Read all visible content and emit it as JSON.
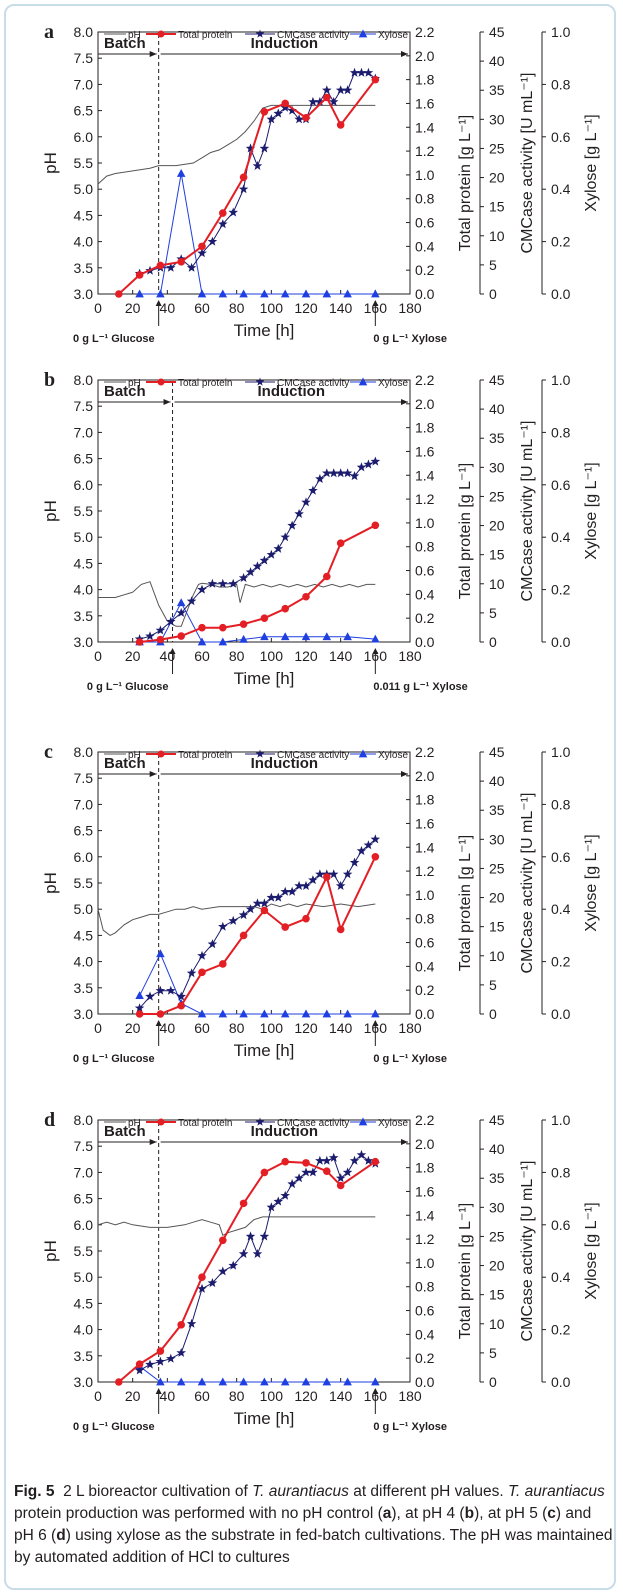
{
  "colors": {
    "ph": "#555555",
    "protein": "#e31e24",
    "cmcase": "#1c1c6e",
    "xylose": "#1f3fe0",
    "frame": "#c9dcea"
  },
  "legend": {
    "ph": "pH",
    "protein": "Total protein",
    "cmcase": "CMCase activity",
    "xylose": "Xylose"
  },
  "axes": {
    "x_label": "Time [h]",
    "y_left_label": "pH",
    "y_protein_label": "Total protein [g L⁻¹]",
    "y_cmcase_label": "CMCase activity [U mL⁻¹]",
    "y_xylose_label": "Xylose [g L⁻¹]",
    "x_ticks": [
      "0",
      "20",
      "40",
      "60",
      "80",
      "100",
      "120",
      "140",
      "160",
      "180"
    ],
    "ph_ticks": [
      "3.0",
      "3.5",
      "4.0",
      "4.5",
      "5.0",
      "5.5",
      "6.0",
      "6.5",
      "7.0",
      "7.5",
      "8.0"
    ],
    "protein_ticks": [
      "0.0",
      "0.2",
      "0.4",
      "0.6",
      "0.8",
      "1.0",
      "1.2",
      "1.4",
      "1.6",
      "1.8",
      "2.0",
      "2.2"
    ],
    "cmcase_ticks": [
      "0",
      "5",
      "10",
      "15",
      "20",
      "25",
      "30",
      "35",
      "40",
      "45"
    ],
    "xylose_ticks": [
      "0.0",
      "0.2",
      "0.4",
      "0.6",
      "0.8",
      "1.0"
    ]
  },
  "phase_labels": {
    "batch": "Batch",
    "induction": "Induction"
  },
  "caption": {
    "fig": "Fig. 5",
    "text1": "2 L bioreactor cultivation of ",
    "org1": "T. aurantiacus",
    "text2": " at different pH values. ",
    "org2": "T. aurantiacus",
    "text3": " protein production was performed with no pH control (",
    "a": "a",
    "text4": "), at pH 4 (",
    "b": "b",
    "text5": "), at pH 5 (",
    "c": "c",
    "text6": ") and pH 6 (",
    "d": "d",
    "text7": ") using xylose as the substrate in fed-batch cultivations. The pH was maintained by automated addition of HCl to cultures"
  },
  "chart_data": [
    {
      "type": "line",
      "panel": "a",
      "batch_end_h": 35,
      "glucose_note": "0 g L⁻¹ Glucose",
      "xylose_note": "0 g L⁻¹ Xylose",
      "xlim": [
        0,
        180
      ],
      "ph_lim": [
        3.0,
        8.0
      ],
      "protein_lim": [
        0,
        2.2
      ],
      "cmcase_lim": [
        0,
        45
      ],
      "xylose_lim": [
        0,
        1.0
      ],
      "ph": {
        "x": [
          0,
          5,
          10,
          20,
          30,
          35,
          45,
          55,
          60,
          65,
          70,
          75,
          80,
          85,
          90,
          95,
          100,
          105,
          110,
          120,
          130,
          140,
          150,
          160
        ],
        "y": [
          5.1,
          5.25,
          5.3,
          5.35,
          5.4,
          5.45,
          5.45,
          5.5,
          5.6,
          5.7,
          5.75,
          5.85,
          5.95,
          6.1,
          6.3,
          6.55,
          6.6,
          6.6,
          6.6,
          6.6,
          6.6,
          6.6,
          6.6,
          6.6
        ]
      },
      "protein": {
        "x": [
          12,
          24,
          36,
          48,
          60,
          72,
          84,
          96,
          108,
          120,
          132,
          140,
          160
        ],
        "y": [
          0.0,
          0.16,
          0.24,
          0.27,
          0.4,
          0.68,
          0.98,
          1.53,
          1.6,
          1.48,
          1.65,
          1.42,
          1.8
        ]
      },
      "cmcase": {
        "x": [
          24,
          30,
          36,
          42,
          48,
          54,
          60,
          66,
          72,
          78,
          84,
          88,
          92,
          96,
          100,
          104,
          108,
          112,
          116,
          120,
          124,
          128,
          132,
          136,
          140,
          144,
          148,
          152,
          156,
          160
        ],
        "y": [
          3.5,
          4.0,
          4.5,
          4.5,
          6.0,
          4.5,
          7.0,
          9.0,
          12.0,
          14.0,
          18.0,
          25.0,
          22.0,
          25.0,
          30.0,
          31.0,
          32.0,
          31.5,
          30.0,
          30.0,
          33.0,
          33.0,
          35.0,
          33.0,
          35.0,
          35.0,
          38.0,
          38.0,
          38.0,
          37.0
        ]
      },
      "xylose": {
        "x": [
          24,
          36,
          48,
          60,
          72,
          84,
          96,
          108,
          120,
          132,
          144,
          160
        ],
        "y": [
          0.0,
          0.0,
          0.46,
          0.0,
          0.0,
          0.0,
          0.0,
          0.0,
          0.0,
          0.0,
          0.0,
          0.0
        ]
      }
    },
    {
      "type": "line",
      "panel": "b",
      "batch_end_h": 43,
      "glucose_note": "0 g L⁻¹ Glucose",
      "xylose_note": "0.011 g L⁻¹ Xylose",
      "xlim": [
        0,
        180
      ],
      "ph_lim": [
        3.0,
        8.0
      ],
      "protein_lim": [
        0,
        2.2
      ],
      "cmcase_lim": [
        0,
        45
      ],
      "xylose_lim": [
        0,
        1.0
      ],
      "ph": {
        "x": [
          0,
          10,
          20,
          25,
          30,
          35,
          40,
          45,
          48,
          55,
          58,
          60,
          65,
          70,
          75,
          80,
          82,
          85,
          90,
          95,
          100,
          105,
          110,
          115,
          120,
          125,
          130,
          135,
          140,
          145,
          150,
          155,
          160
        ],
        "y": [
          3.85,
          3.85,
          3.95,
          4.1,
          4.15,
          3.7,
          3.4,
          3.3,
          3.3,
          3.9,
          4.1,
          4.12,
          4.1,
          4.05,
          4.05,
          4.1,
          3.75,
          4.1,
          4.05,
          4.1,
          4.05,
          4.1,
          4.05,
          4.1,
          4.05,
          4.1,
          4.05,
          4.1,
          4.05,
          4.1,
          4.05,
          4.1,
          4.1
        ]
      },
      "protein": {
        "x": [
          24,
          36,
          48,
          60,
          72,
          84,
          96,
          108,
          120,
          132,
          140,
          160
        ],
        "y": [
          0.0,
          0.02,
          0.05,
          0.12,
          0.12,
          0.15,
          0.2,
          0.28,
          0.38,
          0.55,
          0.83,
          0.98
        ]
      },
      "cmcase": {
        "x": [
          24,
          30,
          36,
          42,
          48,
          54,
          60,
          66,
          72,
          78,
          84,
          88,
          92,
          96,
          100,
          104,
          108,
          112,
          116,
          120,
          124,
          128,
          132,
          136,
          140,
          144,
          148,
          152,
          156,
          160
        ],
        "y": [
          0.5,
          1.0,
          2.0,
          3.5,
          5.0,
          7.0,
          9.0,
          10.0,
          10.0,
          10.0,
          11.0,
          12.0,
          13.0,
          14.0,
          15.0,
          16.0,
          18.0,
          20.0,
          22.0,
          24.0,
          26.0,
          28.0,
          29.0,
          29.0,
          29.0,
          29.0,
          28.5,
          30.0,
          30.5,
          31.0
        ]
      },
      "xylose": {
        "x": [
          24,
          36,
          48,
          60,
          72,
          84,
          96,
          108,
          120,
          132,
          144,
          160
        ],
        "y": [
          0.0,
          0.0,
          0.15,
          0.0,
          0.0,
          0.01,
          0.02,
          0.02,
          0.02,
          0.02,
          0.02,
          0.011
        ]
      }
    },
    {
      "type": "line",
      "panel": "c",
      "batch_end_h": 35,
      "glucose_note": "0 g L⁻¹ Glucose",
      "xylose_note": "0 g L⁻¹ Xylose",
      "xlim": [
        0,
        180
      ],
      "ph_lim": [
        3.0,
        8.0
      ],
      "protein_lim": [
        0,
        2.2
      ],
      "cmcase_lim": [
        0,
        45
      ],
      "xylose_lim": [
        0,
        1.0
      ],
      "ph": {
        "x": [
          0,
          3,
          7,
          10,
          15,
          20,
          25,
          30,
          35,
          40,
          45,
          50,
          55,
          60,
          70,
          80,
          90,
          95,
          100,
          105,
          110,
          115,
          120,
          130,
          140,
          150,
          160
        ],
        "y": [
          5.0,
          4.6,
          4.5,
          4.55,
          4.7,
          4.8,
          4.85,
          4.9,
          4.9,
          4.95,
          5.0,
          5.0,
          5.05,
          5.0,
          5.05,
          5.05,
          5.05,
          5.0,
          5.1,
          5.05,
          5.1,
          5.05,
          5.1,
          5.05,
          5.1,
          5.05,
          5.1
        ]
      },
      "protein": {
        "x": [
          24,
          36,
          48,
          60,
          72,
          84,
          96,
          108,
          120,
          132,
          140,
          160
        ],
        "y": [
          0.0,
          0.0,
          0.07,
          0.35,
          0.42,
          0.66,
          0.87,
          0.73,
          0.8,
          1.15,
          0.71,
          1.32
        ]
      },
      "cmcase": {
        "x": [
          24,
          30,
          36,
          42,
          48,
          54,
          60,
          66,
          72,
          78,
          84,
          88,
          92,
          96,
          100,
          104,
          108,
          112,
          116,
          120,
          124,
          128,
          132,
          136,
          140,
          144,
          148,
          152,
          156,
          160
        ],
        "y": [
          1.0,
          3.0,
          4.0,
          4.0,
          3.0,
          7.0,
          10.0,
          12.0,
          15.0,
          16.0,
          17.0,
          18.0,
          19.0,
          19.0,
          20.0,
          20.0,
          21.0,
          21.0,
          22.0,
          22.0,
          23.0,
          24.0,
          24.0,
          24.0,
          22.0,
          24.0,
          26.0,
          28.0,
          29.0,
          30.0
        ]
      },
      "xylose": {
        "x": [
          24,
          36,
          48,
          60,
          72,
          84,
          96,
          108,
          120,
          132,
          144,
          160
        ],
        "y": [
          0.07,
          0.23,
          0.04,
          0.0,
          0.0,
          0.0,
          0.0,
          0.0,
          0.0,
          0.0,
          0.0,
          0.0
        ]
      }
    },
    {
      "type": "line",
      "panel": "d",
      "batch_end_h": 35,
      "glucose_note": "0 g L⁻¹ Glucose",
      "xylose_note": "0 g L⁻¹ Xylose",
      "xlim": [
        0,
        180
      ],
      "ph_lim": [
        3.0,
        8.0
      ],
      "protein_lim": [
        0,
        2.2
      ],
      "cmcase_lim": [
        0,
        45
      ],
      "xylose_lim": [
        0,
        1.0
      ],
      "ph": {
        "x": [
          0,
          5,
          10,
          15,
          20,
          30,
          40,
          50,
          55,
          60,
          65,
          70,
          72,
          75,
          80,
          85,
          90,
          95,
          100,
          110,
          120,
          130,
          140,
          150,
          160
        ],
        "y": [
          6.0,
          6.05,
          6.0,
          6.05,
          6.0,
          5.95,
          5.95,
          6.0,
          6.05,
          6.1,
          6.05,
          6.0,
          5.8,
          5.85,
          5.9,
          5.95,
          6.1,
          6.15,
          6.15,
          6.15,
          6.15,
          6.15,
          6.15,
          6.15,
          6.15
        ]
      },
      "protein": {
        "x": [
          12,
          24,
          36,
          48,
          60,
          72,
          84,
          96,
          108,
          120,
          132,
          140,
          160
        ],
        "y": [
          0.0,
          0.15,
          0.26,
          0.48,
          0.88,
          1.19,
          1.5,
          1.76,
          1.85,
          1.84,
          1.77,
          1.65,
          1.85
        ]
      },
      "cmcase": {
        "x": [
          24,
          30,
          36,
          42,
          48,
          54,
          60,
          66,
          72,
          78,
          84,
          88,
          92,
          96,
          100,
          104,
          108,
          112,
          116,
          120,
          124,
          128,
          132,
          136,
          140,
          144,
          148,
          152,
          156,
          160
        ],
        "y": [
          2.0,
          3.0,
          3.5,
          4.0,
          5.0,
          10.0,
          16.0,
          17.0,
          19.0,
          20.0,
          22.0,
          25.0,
          22.0,
          25.0,
          30.0,
          31.0,
          32.0,
          34.0,
          35.0,
          36.0,
          36.0,
          38.0,
          38.0,
          38.5,
          35.0,
          36.0,
          38.0,
          39.0,
          38.0,
          37.5
        ]
      },
      "xylose": {
        "x": [
          24,
          36,
          48,
          60,
          72,
          84,
          96,
          108,
          120,
          132,
          144,
          160
        ],
        "y": [
          0.06,
          0.0,
          0.0,
          0.0,
          0.0,
          0.0,
          0.0,
          0.0,
          0.0,
          0.0,
          0.0,
          0.0
        ]
      }
    }
  ]
}
